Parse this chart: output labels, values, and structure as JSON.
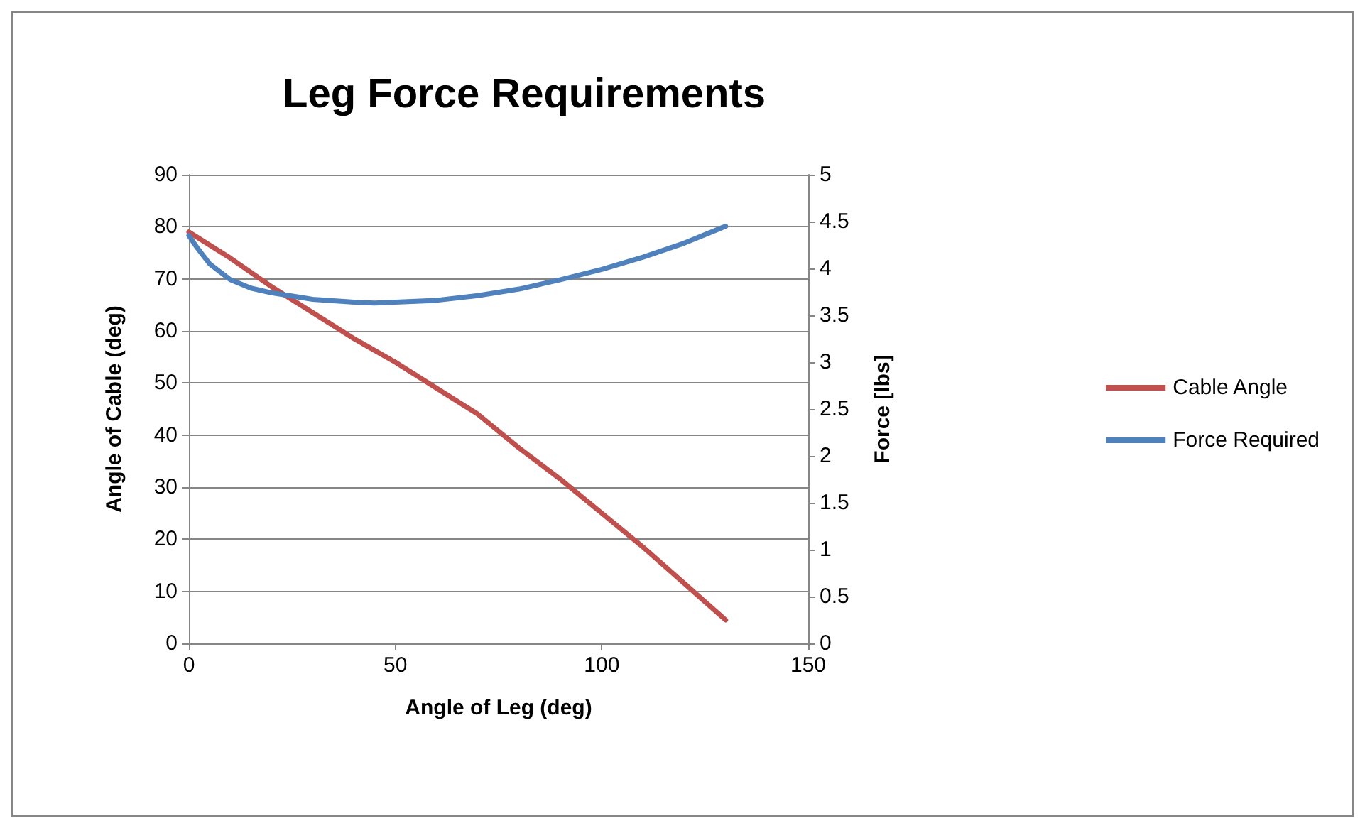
{
  "chart_data": {
    "type": "line",
    "title": "Leg Force Requirements",
    "xlabel": "Angle of Leg (deg)",
    "ylabel": "Angle of Cable (deg)",
    "y2label": "Force [lbs]",
    "xlim": [
      0,
      150
    ],
    "xticks": [
      0,
      50,
      100,
      150
    ],
    "ylim": [
      0,
      90
    ],
    "yticks": [
      0,
      10,
      20,
      30,
      40,
      50,
      60,
      70,
      80,
      90
    ],
    "y2lim": [
      0,
      5
    ],
    "y2ticks": [
      0,
      0.5,
      1,
      1.5,
      2,
      2.5,
      3,
      3.5,
      4,
      4.5,
      5
    ],
    "grid": "y",
    "legend": "right",
    "marker": "none",
    "line_style": "solid",
    "series": [
      {
        "name": "Cable Angle",
        "color": "#c0504d",
        "x": [
          0,
          10,
          20,
          30,
          40,
          50,
          60,
          70,
          80,
          90,
          100,
          110,
          120,
          125,
          130
        ],
        "values": [
          79,
          74,
          68.5,
          63.5,
          58.5,
          54,
          49,
          44,
          37.5,
          31.5,
          25,
          18.5,
          11.5,
          8,
          4.5
        ]
      },
      {
        "name": "Force Required",
        "color": "#4f81bd",
        "axis": "y2",
        "x": [
          0,
          2,
          5,
          10,
          15,
          20,
          30,
          40,
          45,
          50,
          60,
          70,
          80,
          90,
          100,
          110,
          120,
          130
        ],
        "values": [
          4.35,
          4.22,
          4.05,
          3.88,
          3.79,
          3.74,
          3.67,
          3.64,
          3.63,
          3.64,
          3.66,
          3.71,
          3.78,
          3.88,
          3.99,
          4.12,
          4.27,
          4.45
        ]
      }
    ]
  }
}
